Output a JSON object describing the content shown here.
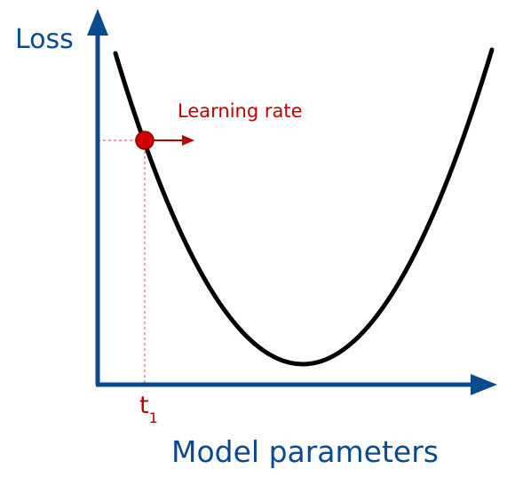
{
  "diagram": {
    "y_axis_label": "Loss",
    "x_axis_label": "Model parameters",
    "point_annotation": "Learning rate",
    "tick_main": "t",
    "tick_sub": "1"
  },
  "colors": {
    "axis": "#0a4a8f",
    "curve": "#000000",
    "accent": "#c00000"
  }
}
